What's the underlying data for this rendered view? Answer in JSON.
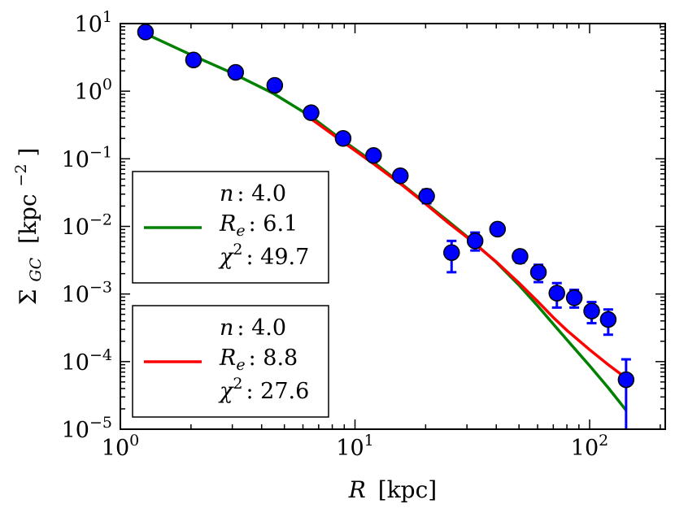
{
  "chart_data": {
    "type": "scatter",
    "title": "",
    "xlabel_sym": "R",
    "xlabel_unit": "[kpc]",
    "ylabel_sym": "Σ",
    "ylabel_sub": "GC",
    "ylabel_unit": "[kpc",
    "ylabel_exp": "−2",
    "ylabel_close": "]",
    "xscale": "log",
    "yscale": "log",
    "xlim": [
      1.0,
      210
    ],
    "ylim": [
      1e-05,
      10
    ],
    "x_ticks": [
      {
        "value": 1,
        "base": "10",
        "exp": "0"
      },
      {
        "value": 10,
        "base": "10",
        "exp": "1"
      },
      {
        "value": 100,
        "base": "10",
        "exp": "2"
      }
    ],
    "y_ticks": [
      {
        "value": 10,
        "base": "10",
        "exp": "1"
      },
      {
        "value": 1,
        "base": "10",
        "exp": "0"
      },
      {
        "value": 0.1,
        "base": "10",
        "exp": "−1"
      },
      {
        "value": 0.01,
        "base": "10",
        "exp": "−2"
      },
      {
        "value": 0.001,
        "base": "10",
        "exp": "−3"
      },
      {
        "value": 0.0001,
        "base": "10",
        "exp": "−4"
      },
      {
        "value": 1e-05,
        "base": "10",
        "exp": "−5"
      }
    ],
    "data_points": {
      "name": "observed",
      "color": "#0000ff",
      "x": [
        1.28,
        2.05,
        3.1,
        4.55,
        6.5,
        8.9,
        12.0,
        15.6,
        20.2,
        25.8,
        32.5,
        40.5,
        50.5,
        60.5,
        72.5,
        86.0,
        102.0,
        120.0,
        143.0
      ],
      "y": [
        7.5,
        2.9,
        1.9,
        1.22,
        0.48,
        0.2,
        0.112,
        0.056,
        0.028,
        0.0041,
        0.0061,
        0.0091,
        0.0036,
        0.0021,
        0.00103,
        0.00088,
        0.00056,
        0.00042,
        5.4e-05
      ],
      "err_lo": [
        null,
        null,
        null,
        null,
        null,
        null,
        null,
        null,
        0.022,
        0.0021,
        0.0044,
        null,
        0.0029,
        0.0015,
        0.00063,
        0.00063,
        0.00037,
        0.00025,
        1e-05
      ],
      "err_hi": [
        null,
        null,
        null,
        null,
        null,
        null,
        null,
        null,
        0.035,
        0.0061,
        0.0081,
        null,
        0.0044,
        0.0027,
        0.00145,
        0.00115,
        0.00076,
        0.00059,
        0.000108
      ]
    },
    "series": [
      {
        "name": "fit1",
        "color": "#008000",
        "n_label": "n",
        "n_value": ": 4.0",
        "re_label": "R",
        "re_sub": "e",
        "re_value": ": 6.1",
        "chi_label": "χ",
        "chi_exp": "2",
        "chi_value": ": 49.7",
        "x": [
          1.28,
          2.0,
          3.0,
          4.5,
          6.5,
          9.0,
          12.0,
          16.0,
          20.0,
          25.0,
          30.0,
          40.0,
          50.0,
          60.0,
          70.0,
          80.0,
          90.0,
          100.0,
          120.0,
          143.0
        ],
        "y": [
          7.1,
          3.45,
          1.85,
          0.92,
          0.42,
          0.18,
          0.089,
          0.041,
          0.022,
          0.0119,
          0.0071,
          0.00295,
          0.00135,
          0.00067,
          0.00036,
          0.00021,
          0.000132,
          8.7e-05,
          4.1e-05,
          1.9e-05
        ]
      },
      {
        "name": "fit2",
        "color": "#ff0000",
        "n_label": "n",
        "n_value": ": 4.0",
        "re_label": "R",
        "re_sub": "e",
        "re_value": ": 8.8",
        "chi_label": "χ",
        "chi_exp": "2",
        "chi_value": ": 27.6",
        "x": [
          6.5,
          9.0,
          12.0,
          16.0,
          20.0,
          25.0,
          30.0,
          40.0,
          50.0,
          60.0,
          70.0,
          80.0,
          90.0,
          100.0,
          120.0,
          143.0
        ],
        "y": [
          0.39,
          0.172,
          0.084,
          0.04,
          0.0215,
          0.0113,
          0.0069,
          0.003,
          0.00145,
          0.00078,
          0.00045,
          0.00029,
          0.000205,
          0.00015,
          9e-05,
          5.7e-05
        ]
      }
    ],
    "legend_location": "left-center"
  }
}
